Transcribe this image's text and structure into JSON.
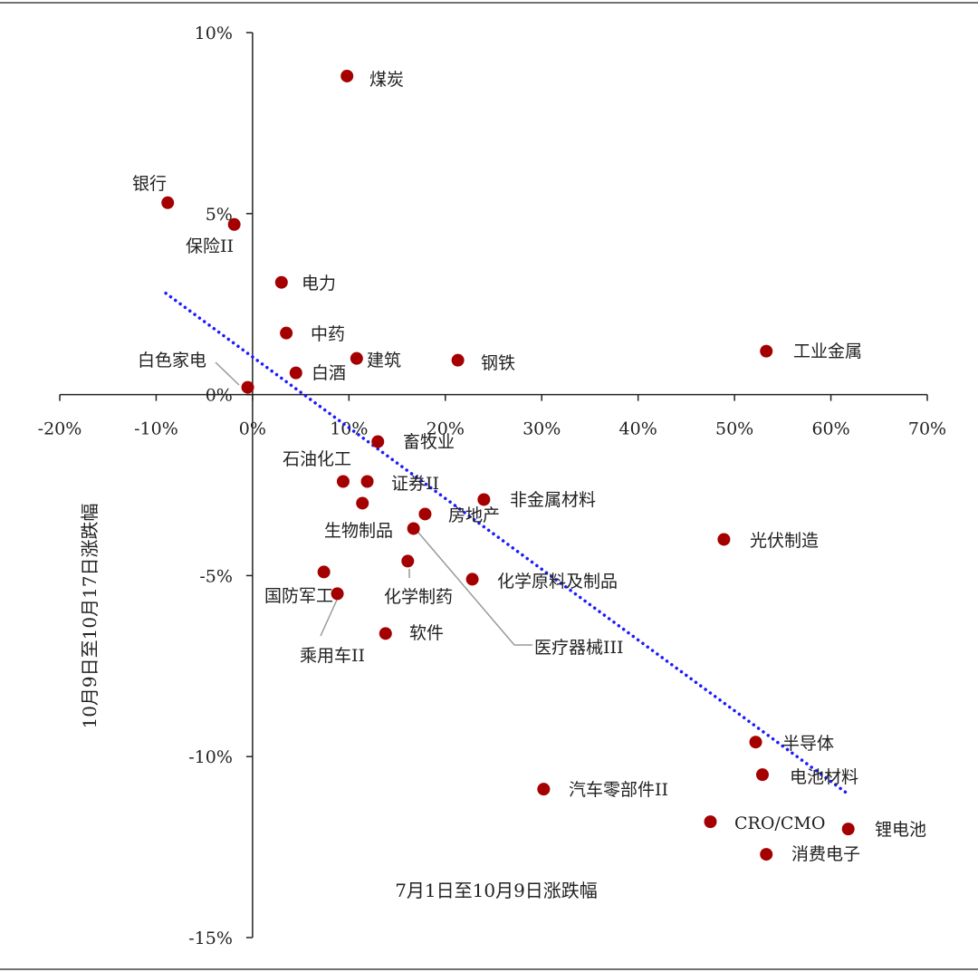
{
  "chart_data": {
    "type": "scatter",
    "xlabel": "7月1日至10月9日涨跌幅",
    "ylabel": "10月9日至10月17日涨跌幅",
    "xlim": [
      -20,
      70
    ],
    "ylim": [
      -15,
      10
    ],
    "x_ticks": [
      "-20%",
      "-10%",
      "0%",
      "10%",
      "20%",
      "30%",
      "40%",
      "50%",
      "60%",
      "70%"
    ],
    "y_ticks": [
      "10%",
      "5%",
      "0%",
      "-5%",
      "-10%",
      "-15%"
    ],
    "grid": false,
    "point_color": "#a50000",
    "trendline": {
      "style": "dotted",
      "color": "#1a1aff",
      "x": [
        -9.0,
        61.6
      ],
      "y": [
        2.8,
        -11.0
      ]
    },
    "points": [
      {
        "name": "煤炭",
        "x": 9.8,
        "y": 8.8
      },
      {
        "name": "银行",
        "x": -8.8,
        "y": 5.3
      },
      {
        "name": "保险II",
        "x": -1.9,
        "y": 4.7
      },
      {
        "name": "电力",
        "x": 3.0,
        "y": 3.1
      },
      {
        "name": "中药",
        "x": 3.5,
        "y": 1.7
      },
      {
        "name": "建筑",
        "x": 10.8,
        "y": 1.0
      },
      {
        "name": "钢铁",
        "x": 21.3,
        "y": 0.95
      },
      {
        "name": "工业金属",
        "x": 53.3,
        "y": 1.2
      },
      {
        "name": "白酒",
        "x": 4.5,
        "y": 0.6
      },
      {
        "name": "白色家电",
        "x": -0.5,
        "y": 0.2
      },
      {
        "name": "畜牧业",
        "x": 13.0,
        "y": -1.3
      },
      {
        "name": "石油化工",
        "x": 9.4,
        "y": -2.4
      },
      {
        "name": "证券II",
        "x": 11.9,
        "y": -2.4
      },
      {
        "name": "生物制品",
        "x": 11.4,
        "y": -3.0
      },
      {
        "name": "房地产",
        "x": 17.9,
        "y": -3.3
      },
      {
        "name": "非金属材料",
        "x": 24.0,
        "y": -2.9
      },
      {
        "name": "医疗器械III",
        "x": 16.7,
        "y": -3.7
      },
      {
        "name": "光伏制造",
        "x": 48.9,
        "y": -4.0
      },
      {
        "name": "化学制药",
        "x": 16.1,
        "y": -4.6
      },
      {
        "name": "化学原料及制品",
        "x": 22.8,
        "y": -5.1
      },
      {
        "name": "国防军工",
        "x": 7.4,
        "y": -4.9
      },
      {
        "name": "乘用车II",
        "x": 8.8,
        "y": -5.5
      },
      {
        "name": "软件",
        "x": 13.8,
        "y": -6.6
      },
      {
        "name": "半导体",
        "x": 52.2,
        "y": -9.6
      },
      {
        "name": "电池材料",
        "x": 52.9,
        "y": -10.5
      },
      {
        "name": "汽车零部件II",
        "x": 30.2,
        "y": -10.9
      },
      {
        "name": "CRO/CMO",
        "x": 47.5,
        "y": -11.8
      },
      {
        "name": "锂电池",
        "x": 61.8,
        "y": -12.0
      },
      {
        "name": "消费电子",
        "x": 53.3,
        "y": -12.7
      }
    ]
  }
}
